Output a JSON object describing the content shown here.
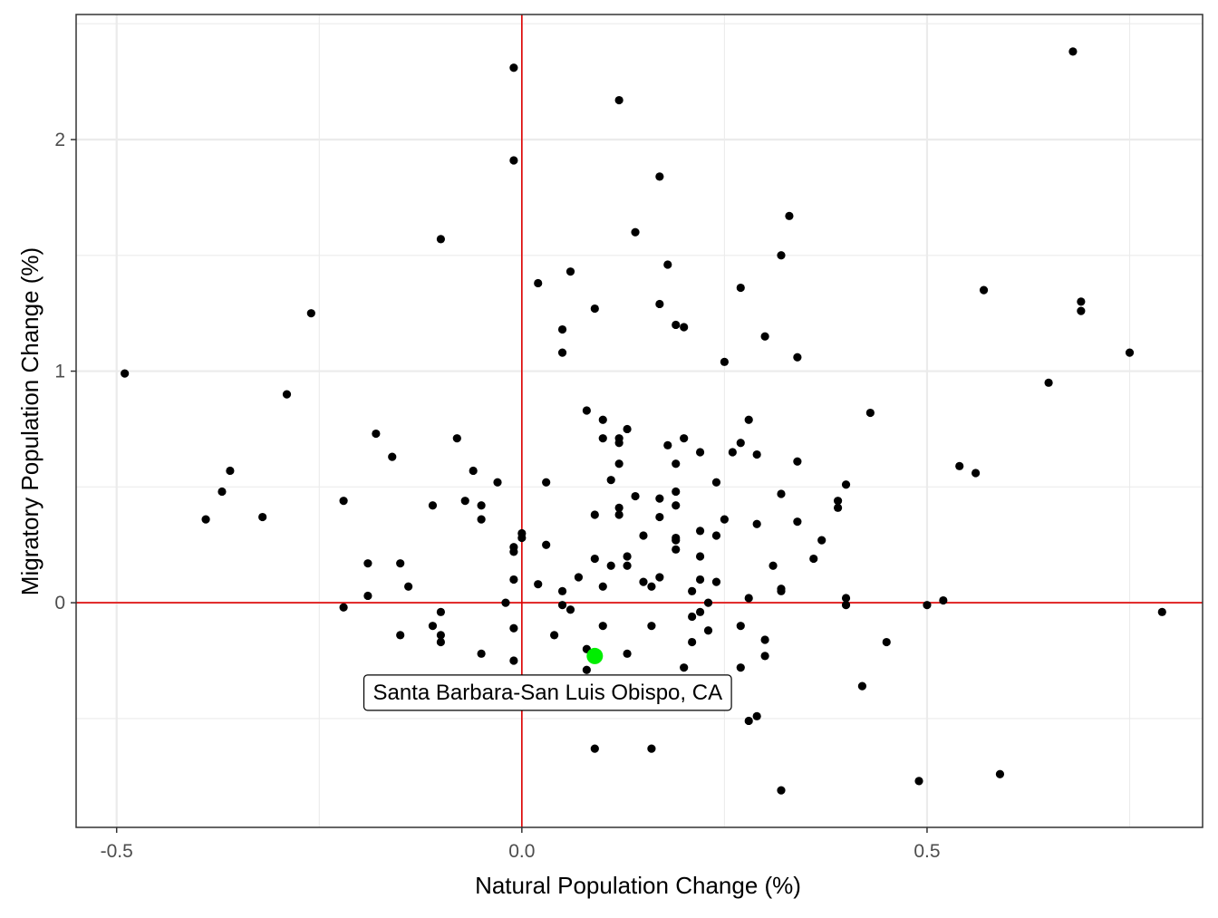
{
  "chart_data": {
    "type": "scatter",
    "xlabel": "Natural Population Change (%)",
    "ylabel": "Migratory Population Change (%)",
    "xlim": [
      -0.55,
      0.84
    ],
    "ylim": [
      -0.97,
      2.54
    ],
    "x_ticks": [
      -0.5,
      0.0,
      0.5
    ],
    "x_tick_labels": [
      "-0.5",
      "0.0",
      "0.5"
    ],
    "y_ticks": [
      0,
      1,
      2
    ],
    "y_tick_labels": [
      "0",
      "1",
      "2"
    ],
    "grid": true,
    "reference_lines": {
      "x": 0,
      "y": 0,
      "color": "#e00000"
    },
    "point_color": "#000000",
    "highlight": {
      "label": "Santa Barbara-San Luis Obispo, CA",
      "x": 0.09,
      "y": -0.23,
      "color": "#00ee00"
    },
    "points": [
      [
        -0.49,
        0.99
      ],
      [
        -0.39,
        0.36
      ],
      [
        -0.37,
        0.48
      ],
      [
        -0.36,
        0.57
      ],
      [
        -0.32,
        0.37
      ],
      [
        -0.29,
        0.9
      ],
      [
        -0.26,
        1.25
      ],
      [
        -0.22,
        0.44
      ],
      [
        -0.22,
        -0.02
      ],
      [
        -0.19,
        0.17
      ],
      [
        -0.19,
        0.03
      ],
      [
        -0.18,
        0.73
      ],
      [
        -0.16,
        0.63
      ],
      [
        -0.15,
        0.17
      ],
      [
        -0.15,
        -0.14
      ],
      [
        -0.14,
        0.07
      ],
      [
        -0.11,
        0.42
      ],
      [
        -0.11,
        -0.1
      ],
      [
        -0.1,
        1.57
      ],
      [
        -0.1,
        -0.04
      ],
      [
        -0.1,
        -0.14
      ],
      [
        -0.1,
        -0.17
      ],
      [
        -0.08,
        0.71
      ],
      [
        -0.07,
        0.44
      ],
      [
        -0.06,
        0.57
      ],
      [
        -0.05,
        0.42
      ],
      [
        -0.05,
        0.36
      ],
      [
        -0.05,
        -0.22
      ],
      [
        -0.03,
        0.52
      ],
      [
        -0.02,
        0.0
      ],
      [
        -0.01,
        2.31
      ],
      [
        -0.01,
        1.91
      ],
      [
        -0.01,
        0.24
      ],
      [
        -0.01,
        0.22
      ],
      [
        -0.01,
        0.1
      ],
      [
        -0.01,
        -0.11
      ],
      [
        -0.01,
        -0.25
      ],
      [
        0.0,
        0.3
      ],
      [
        0.0,
        0.28
      ],
      [
        0.02,
        1.38
      ],
      [
        0.02,
        0.08
      ],
      [
        0.03,
        0.52
      ],
      [
        0.03,
        0.25
      ],
      [
        0.04,
        -0.14
      ],
      [
        0.05,
        1.18
      ],
      [
        0.05,
        1.08
      ],
      [
        0.05,
        0.05
      ],
      [
        0.05,
        -0.01
      ],
      [
        0.06,
        1.43
      ],
      [
        0.06,
        -0.03
      ],
      [
        0.07,
        0.11
      ],
      [
        0.08,
        0.83
      ],
      [
        0.08,
        -0.2
      ],
      [
        0.08,
        -0.29
      ],
      [
        0.09,
        1.27
      ],
      [
        0.09,
        0.38
      ],
      [
        0.09,
        0.19
      ],
      [
        0.09,
        -0.63
      ],
      [
        0.1,
        0.79
      ],
      [
        0.1,
        0.71
      ],
      [
        0.1,
        0.07
      ],
      [
        0.1,
        -0.1
      ],
      [
        0.11,
        0.53
      ],
      [
        0.11,
        0.16
      ],
      [
        0.12,
        2.17
      ],
      [
        0.12,
        0.71
      ],
      [
        0.12,
        0.69
      ],
      [
        0.12,
        0.6
      ],
      [
        0.12,
        0.41
      ],
      [
        0.12,
        0.38
      ],
      [
        0.13,
        0.75
      ],
      [
        0.13,
        0.2
      ],
      [
        0.13,
        0.16
      ],
      [
        0.13,
        -0.22
      ],
      [
        0.14,
        1.6
      ],
      [
        0.14,
        0.46
      ],
      [
        0.15,
        0.29
      ],
      [
        0.15,
        0.09
      ],
      [
        0.16,
        0.07
      ],
      [
        0.16,
        -0.1
      ],
      [
        0.16,
        -0.63
      ],
      [
        0.17,
        1.84
      ],
      [
        0.17,
        1.29
      ],
      [
        0.17,
        0.45
      ],
      [
        0.17,
        0.37
      ],
      [
        0.17,
        0.11
      ],
      [
        0.18,
        1.46
      ],
      [
        0.18,
        0.68
      ],
      [
        0.19,
        1.2
      ],
      [
        0.19,
        0.6
      ],
      [
        0.19,
        0.48
      ],
      [
        0.19,
        0.42
      ],
      [
        0.19,
        0.28
      ],
      [
        0.19,
        0.27
      ],
      [
        0.19,
        0.23
      ],
      [
        0.2,
        1.19
      ],
      [
        0.2,
        0.71
      ],
      [
        0.2,
        -0.28
      ],
      [
        0.21,
        0.05
      ],
      [
        0.21,
        -0.06
      ],
      [
        0.21,
        -0.17
      ],
      [
        0.22,
        0.65
      ],
      [
        0.22,
        0.31
      ],
      [
        0.22,
        0.2
      ],
      [
        0.22,
        0.1
      ],
      [
        0.22,
        -0.04
      ],
      [
        0.23,
        0.0
      ],
      [
        0.23,
        -0.12
      ],
      [
        0.24,
        0.52
      ],
      [
        0.24,
        0.29
      ],
      [
        0.24,
        0.09
      ],
      [
        0.25,
        1.04
      ],
      [
        0.25,
        0.36
      ],
      [
        0.26,
        0.65
      ],
      [
        0.27,
        1.36
      ],
      [
        0.27,
        0.69
      ],
      [
        0.27,
        -0.1
      ],
      [
        0.27,
        -0.28
      ],
      [
        0.28,
        0.79
      ],
      [
        0.28,
        0.02
      ],
      [
        0.28,
        -0.51
      ],
      [
        0.29,
        0.64
      ],
      [
        0.29,
        0.34
      ],
      [
        0.29,
        -0.49
      ],
      [
        0.3,
        1.15
      ],
      [
        0.3,
        -0.16
      ],
      [
        0.3,
        -0.23
      ],
      [
        0.31,
        0.16
      ],
      [
        0.32,
        1.5
      ],
      [
        0.32,
        0.47
      ],
      [
        0.32,
        0.06
      ],
      [
        0.32,
        0.05
      ],
      [
        0.32,
        -0.81
      ],
      [
        0.33,
        1.67
      ],
      [
        0.34,
        1.06
      ],
      [
        0.34,
        0.61
      ],
      [
        0.34,
        0.35
      ],
      [
        0.36,
        0.19
      ],
      [
        0.37,
        0.27
      ],
      [
        0.39,
        0.44
      ],
      [
        0.39,
        0.41
      ],
      [
        0.4,
        0.51
      ],
      [
        0.4,
        0.02
      ],
      [
        0.4,
        -0.01
      ],
      [
        0.42,
        -0.36
      ],
      [
        0.43,
        0.82
      ],
      [
        0.45,
        -0.17
      ],
      [
        0.49,
        -0.77
      ],
      [
        0.5,
        -0.01
      ],
      [
        0.52,
        0.01
      ],
      [
        0.54,
        0.59
      ],
      [
        0.56,
        0.56
      ],
      [
        0.57,
        1.35
      ],
      [
        0.59,
        -0.74
      ],
      [
        0.65,
        0.95
      ],
      [
        0.68,
        2.38
      ],
      [
        0.69,
        1.3
      ],
      [
        0.69,
        1.26
      ],
      [
        0.75,
        1.08
      ],
      [
        0.79,
        -0.04
      ]
    ]
  }
}
